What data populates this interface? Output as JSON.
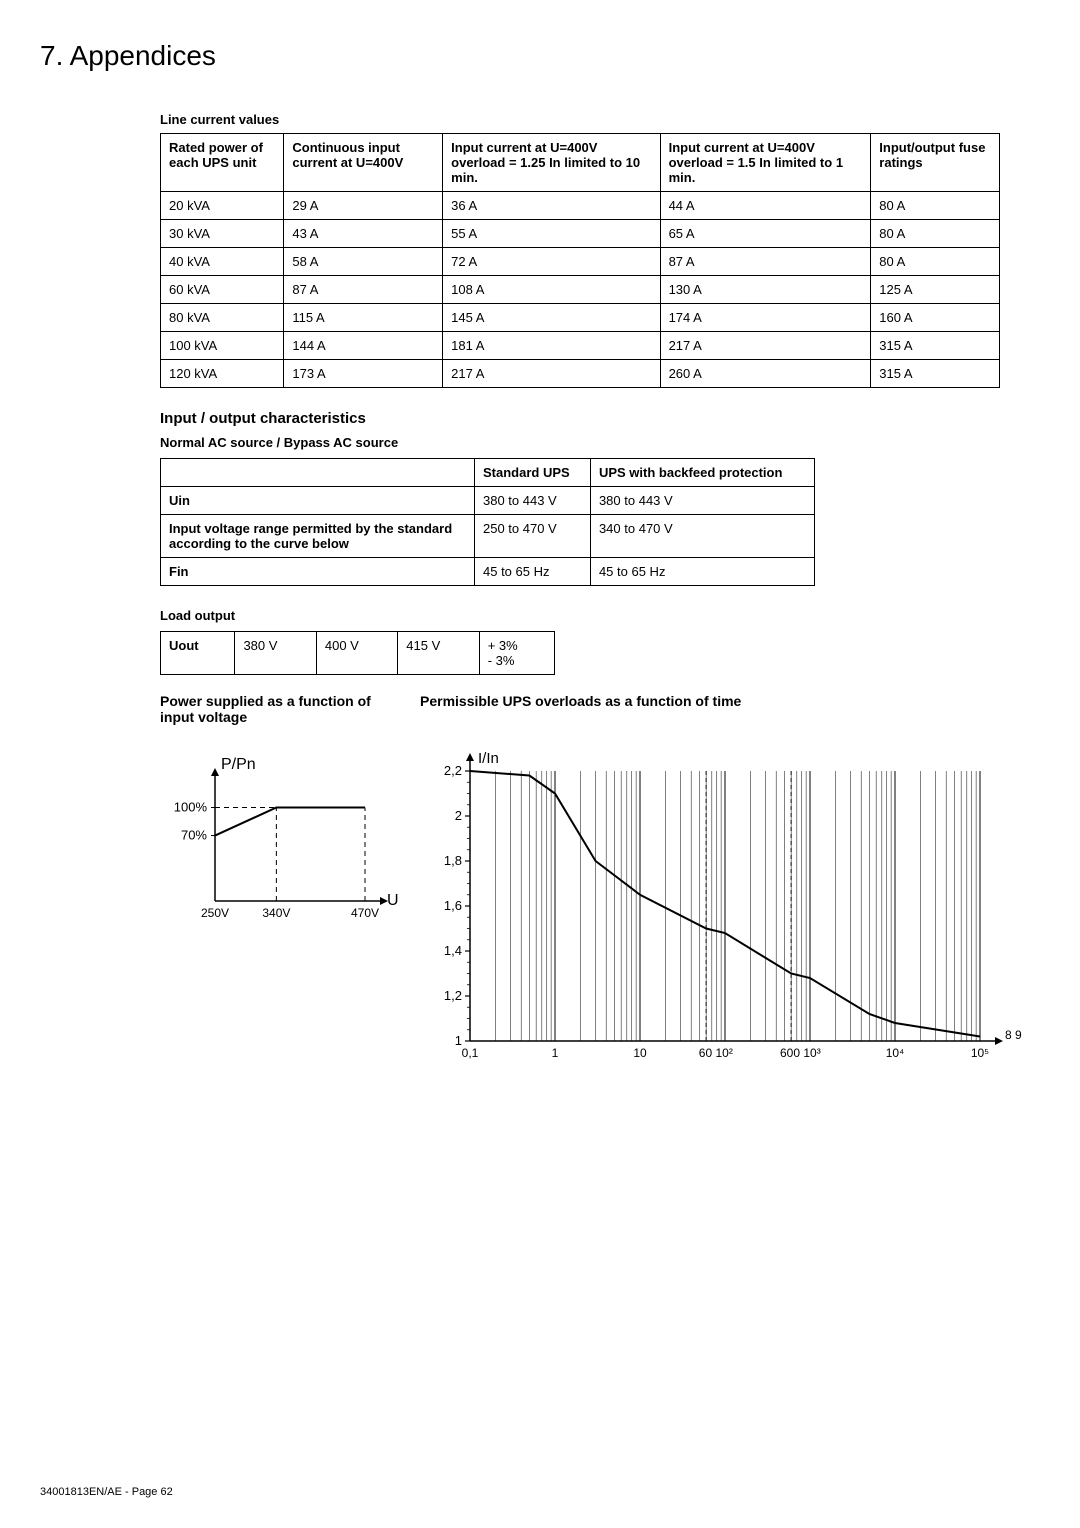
{
  "page_title": "7. Appendices",
  "footer": "34001813EN/AE - Page 62",
  "line_current_table": {
    "title": "Line current values",
    "columns": [
      "Rated power of each UPS unit",
      "Continuous input current at U=400V",
      "Input current at U=400V overload = 1.25 In limited to 10 min.",
      "Input current at U=400V overload = 1.5 In limited to 1 min.",
      "Input/output fuse ratings"
    ],
    "rows": [
      [
        "20 kVA",
        "29 A",
        "36 A",
        "44 A",
        "80 A"
      ],
      [
        "30 kVA",
        "43 A",
        "55 A",
        "65 A",
        "80 A"
      ],
      [
        "40 kVA",
        "58 A",
        "72 A",
        "87 A",
        "80 A"
      ],
      [
        "60 kVA",
        "87 A",
        "108 A",
        "130 A",
        "125 A"
      ],
      [
        "80 kVA",
        "115 A",
        "145 A",
        "174 A",
        "160 A"
      ],
      [
        "100 kVA",
        "144 A",
        "181 A",
        "217 A",
        "315 A"
      ],
      [
        "120 kVA",
        "173 A",
        "217 A",
        "260 A",
        "315 A"
      ]
    ]
  },
  "io_section_title": "Input / output characteristics",
  "io_subtitle": "Normal AC source / Bypass AC source",
  "io_table": {
    "columns": [
      "",
      "Standard UPS",
      "UPS with backfeed protection"
    ],
    "rows": [
      [
        "Uin",
        "380 to 443 V",
        "380 to 443 V"
      ],
      [
        "Input voltage range permitted by the standard according to the curve below",
        "250 to 470 V",
        "340 to 470 V"
      ],
      [
        "Fin",
        "45 to 65 Hz",
        "45 to 65 Hz"
      ]
    ]
  },
  "load_output_title": "Load output",
  "load_output_table": {
    "rows": [
      [
        "Uout",
        "380 V",
        "400 V",
        "415 V",
        "+ 3%\n- 3%"
      ]
    ]
  },
  "chart1": {
    "title": "Power supplied as a function of input voltage",
    "y_label": "P/Pn",
    "x_label": "U",
    "y_ticks": [
      "100%",
      "70%"
    ],
    "x_ticks": [
      "250V",
      "340V",
      "470V"
    ],
    "line_color": "#000000",
    "dash_color": "#000000",
    "background": "#ffffff",
    "points": [
      {
        "x": 250,
        "y": 70
      },
      {
        "x": 340,
        "y": 100
      },
      {
        "x": 470,
        "y": 100
      }
    ]
  },
  "chart2": {
    "title": "Permissible UPS overloads as a function of time",
    "y_label": "I/In",
    "y_ticks": [
      "2,2",
      "2",
      "1,8",
      "1,6",
      "1,4",
      "1,2",
      "1"
    ],
    "x_ticks": [
      "0,1",
      "1",
      "10",
      "60 10²",
      "600 10³",
      "10⁴",
      "10⁵"
    ],
    "corner_label": "8 9",
    "line_color": "#000000",
    "grid_color": "#000000",
    "background": "#ffffff",
    "ylim": [
      1,
      2.2
    ],
    "curve": [
      {
        "t": 0.1,
        "v": 2.2
      },
      {
        "t": 0.5,
        "v": 2.18
      },
      {
        "t": 1,
        "v": 2.1
      },
      {
        "t": 3,
        "v": 1.8
      },
      {
        "t": 10,
        "v": 1.65
      },
      {
        "t": 60,
        "v": 1.5
      },
      {
        "t": 100,
        "v": 1.48
      },
      {
        "t": 600,
        "v": 1.3
      },
      {
        "t": 1000,
        "v": 1.28
      },
      {
        "t": 5000,
        "v": 1.12
      },
      {
        "t": 10000,
        "v": 1.08
      },
      {
        "t": 100000,
        "v": 1.02
      }
    ]
  }
}
